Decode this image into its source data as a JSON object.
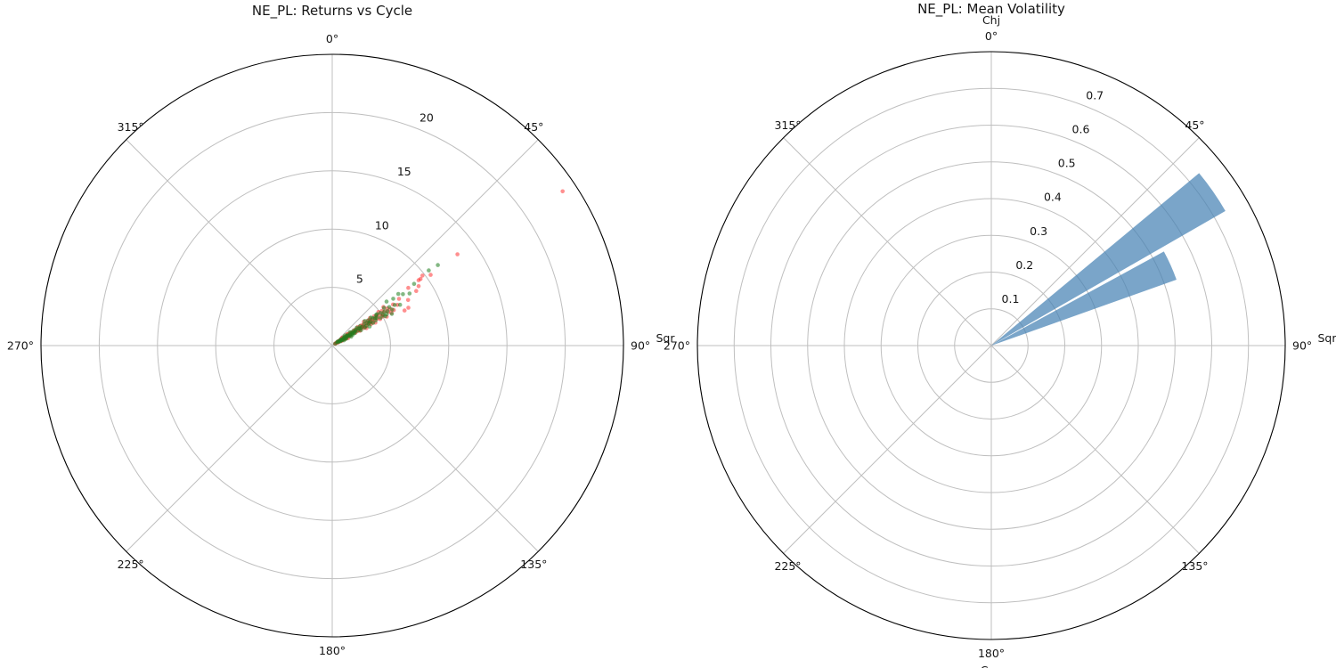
{
  "figure": {
    "background": "#ffffff",
    "left_title": "NE_PL: Returns vs Cycle",
    "right_title": "NE_PL: Mean Volatility"
  },
  "chart_data": [
    {
      "type": "scatter",
      "projection": "polar",
      "title": "NE_PL: Returns vs Cycle",
      "theta_zero": "N",
      "theta_direction": "clockwise",
      "theta_tick_labels": [
        "0°",
        "45°",
        "90°",
        "135°",
        "180°",
        "225°",
        "270°",
        "315°"
      ],
      "category_labels": [
        {
          "text": "Sqr",
          "angle_deg": 90
        }
      ],
      "r_ticks": [
        5,
        10,
        15,
        20
      ],
      "r_tick_labels": [
        "5",
        "10",
        "15",
        "20"
      ],
      "r_max": 25,
      "r_label_angle_deg": 22.5,
      "grid": true,
      "grid_color": "#bfbfbf",
      "spine_color": "#000000",
      "series": [
        {
          "name": "series-red",
          "color": "#ff1f1f",
          "alpha": 0.5,
          "points": [
            [
              57,
              0.3
            ],
            [
              59,
              0.5
            ],
            [
              55,
              0.6
            ],
            [
              60,
              0.7
            ],
            [
              56,
              0.8
            ],
            [
              58,
              0.9
            ],
            [
              61,
              1
            ],
            [
              54,
              1
            ],
            [
              57,
              1.1
            ],
            [
              59,
              1.2
            ],
            [
              55,
              1.3
            ],
            [
              62,
              1.3
            ],
            [
              58,
              1.4
            ],
            [
              56,
              1.5
            ],
            [
              60,
              1.5
            ],
            [
              53,
              1.6
            ],
            [
              59,
              1.7
            ],
            [
              57,
              1.8
            ],
            [
              61,
              1.8
            ],
            [
              55,
              1.9
            ],
            [
              58,
              2
            ],
            [
              63,
              1.2
            ],
            [
              64,
              0.9
            ],
            [
              52,
              1.1
            ],
            [
              65,
              1.5
            ],
            [
              54,
              1.7
            ],
            [
              62,
              0.6
            ],
            [
              56,
              0.4
            ],
            [
              60,
              1.1
            ],
            [
              58,
              0.7
            ],
            [
              57,
              2.1
            ],
            [
              59,
              2.2
            ],
            [
              55,
              2.3
            ],
            [
              61,
              2.3
            ],
            [
              58,
              2.4
            ],
            [
              56,
              2.5
            ],
            [
              60,
              2.6
            ],
            [
              54,
              2.7
            ],
            [
              62,
              2.7
            ],
            [
              57,
              2.8
            ],
            [
              59,
              2.9
            ],
            [
              55,
              3
            ],
            [
              58,
              3.1
            ],
            [
              61,
              3.1
            ],
            [
              56,
              3.2
            ],
            [
              60,
              3.3
            ],
            [
              53,
              3.4
            ],
            [
              57,
              3.5
            ],
            [
              59,
              3.6
            ],
            [
              63,
              3.3
            ],
            [
              55,
              3.7
            ],
            [
              58,
              3.8
            ],
            [
              61,
              3.8
            ],
            [
              56,
              3.9
            ],
            [
              54,
              4
            ],
            [
              60,
              4
            ],
            [
              57,
              4.1
            ],
            [
              62,
              4.2
            ],
            [
              58,
              4.3
            ],
            [
              55,
              4.4
            ],
            [
              59,
              4.5
            ],
            [
              56,
              4.6
            ],
            [
              61,
              4.7
            ],
            [
              57,
              4.8
            ],
            [
              54,
              4.9
            ],
            [
              60,
              5
            ],
            [
              58,
              5.1
            ],
            [
              55,
              5.2
            ],
            [
              62,
              5.3
            ],
            [
              57,
              5.4
            ],
            [
              59,
              5.6
            ],
            [
              56,
              5.7
            ],
            [
              61,
              5.8
            ],
            [
              58,
              5.9
            ],
            [
              53,
              5.5
            ],
            [
              60,
              6.1
            ],
            [
              56,
              6.3
            ],
            [
              58,
              6.6
            ],
            [
              64.1,
              6.9
            ],
            [
              63.6,
              7.3
            ],
            [
              55,
              7
            ],
            [
              59,
              7.6
            ],
            [
              52.8,
              8.2
            ],
            [
              57,
              8.6
            ],
            [
              55.5,
              9
            ],
            [
              52.9,
              9.3
            ],
            [
              53,
              9.5
            ],
            [
              52.2,
              9.8
            ],
            [
              54.3,
              10.4
            ],
            [
              53.9,
              13.3
            ],
            [
              56.2,
              23.8
            ]
          ]
        },
        {
          "name": "series-green",
          "color": "#1e7d1e",
          "alpha": 0.55,
          "points": [
            [
              58,
              0.3
            ],
            [
              56,
              0.5
            ],
            [
              60,
              0.6
            ],
            [
              57,
              0.7
            ],
            [
              59,
              0.8
            ],
            [
              55,
              0.9
            ],
            [
              61,
              1
            ],
            [
              58,
              1.1
            ],
            [
              54,
              1.2
            ],
            [
              60,
              1.2
            ],
            [
              56,
              1.3
            ],
            [
              62,
              1.4
            ],
            [
              57,
              1.5
            ],
            [
              59,
              1.6
            ],
            [
              55,
              1.6
            ],
            [
              61,
              1.7
            ],
            [
              58,
              1.8
            ],
            [
              53,
              1.9
            ],
            [
              60,
              1.9
            ],
            [
              56,
              2
            ],
            [
              63,
              0.8
            ],
            [
              64,
              1.3
            ],
            [
              52,
              1.4
            ],
            [
              66,
              1.1
            ],
            [
              65,
              1.8
            ],
            [
              54,
              0.6
            ],
            [
              62,
              2
            ],
            [
              57,
              0.9
            ],
            [
              59,
              2.1
            ],
            [
              55,
              2.2
            ],
            [
              61,
              2.2
            ],
            [
              58,
              2.3
            ],
            [
              56,
              2.4
            ],
            [
              60,
              2.5
            ],
            [
              54,
              2.6
            ],
            [
              57,
              2.7
            ],
            [
              62,
              2.8
            ],
            [
              59,
              2.8
            ],
            [
              55,
              2.9
            ],
            [
              58,
              3
            ],
            [
              61,
              3.2
            ],
            [
              56,
              3.3
            ],
            [
              60,
              3.4
            ],
            [
              53,
              3.5
            ],
            [
              57,
              3.6
            ],
            [
              59,
              3.7
            ],
            [
              63,
              3.6
            ],
            [
              55,
              3.8
            ],
            [
              58,
              3.9
            ],
            [
              61,
              4
            ],
            [
              54,
              4.1
            ],
            [
              56,
              4.2
            ],
            [
              60,
              4.3
            ],
            [
              57,
              4.4
            ],
            [
              58,
              4.5
            ],
            [
              55,
              4.7
            ],
            [
              60,
              4.8
            ],
            [
              56,
              5
            ],
            [
              59,
              5.1
            ],
            [
              61,
              5.2
            ],
            [
              57,
              5.3
            ],
            [
              54,
              5.5
            ],
            [
              58,
              5.6
            ],
            [
              62,
              5.8
            ],
            [
              56,
              5.9
            ],
            [
              59,
              6
            ],
            [
              60,
              5.4
            ],
            [
              55,
              4.6
            ],
            [
              51,
              6
            ],
            [
              52.5,
              6.6
            ],
            [
              52,
              7.2
            ],
            [
              57,
              6.4
            ],
            [
              59,
              6.8
            ],
            [
              54,
              7.5
            ],
            [
              56,
              8
            ],
            [
              53,
              8.8
            ],
            [
              52.1,
              10.5
            ],
            [
              52.7,
              11.4
            ]
          ]
        }
      ]
    },
    {
      "type": "bar",
      "projection": "polar",
      "title": "NE_PL: Mean Volatility",
      "theta_zero": "N",
      "theta_direction": "clockwise",
      "theta_tick_labels": [
        "0°",
        "45°",
        "90°",
        "135°",
        "180°",
        "225°",
        "270°",
        "315°"
      ],
      "category_labels": [
        {
          "text": "Chj",
          "angle_deg": 0
        },
        {
          "text": "Sqr",
          "angle_deg": 90
        },
        {
          "text": "Cnn",
          "angle_deg": 180
        }
      ],
      "r_ticks": [
        0.1,
        0.2,
        0.3,
        0.4,
        0.5,
        0.6,
        0.7
      ],
      "r_tick_labels": [
        "0.1",
        "0.2",
        "0.3",
        "0.4",
        "0.5",
        "0.6",
        "0.7"
      ],
      "r_max": 0.8,
      "r_label_angle_deg": 22.5,
      "grid": true,
      "grid_color": "#bfbfbf",
      "spine_color": "#000000",
      "bar_color": "#4682b4",
      "bar_alpha": 0.72,
      "bars": [
        {
          "theta_start_deg": 50.3,
          "theta_end_deg": 60.1,
          "value": 0.735
        },
        {
          "theta_start_deg": 61.4,
          "theta_end_deg": 70.4,
          "value": 0.535
        }
      ]
    }
  ]
}
